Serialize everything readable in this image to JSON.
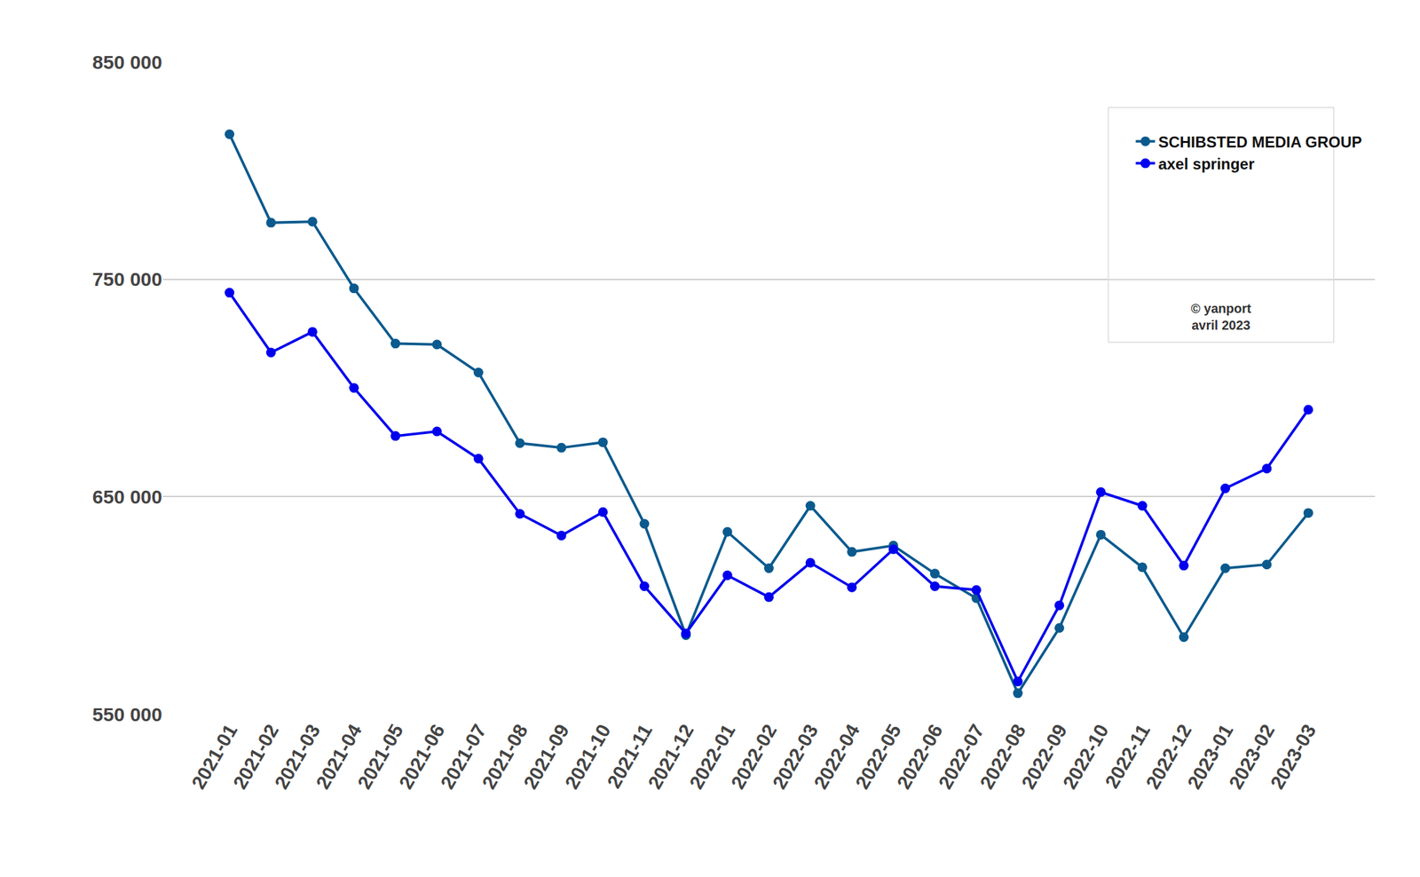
{
  "chart_data": {
    "type": "line",
    "categories": [
      "2021-01",
      "2021-02",
      "2021-03",
      "2021-04",
      "2021-05",
      "2021-06",
      "2021-07",
      "2021-08",
      "2021-09",
      "2021-10",
      "2021-11",
      "2021-12",
      "2022-01",
      "2022-02",
      "2022-03",
      "2022-04",
      "2022-05",
      "2022-06",
      "2022-07",
      "2022-08",
      "2022-09",
      "2022-10",
      "2022-11",
      "2022-12",
      "2023-01",
      "2023-02",
      "2023-03"
    ],
    "series": [
      {
        "name": "SCHIBSTED MEDIA GROUP",
        "color": "#0b5a8e",
        "marker": "circle",
        "values": [
          816700,
          776000,
          776500,
          745800,
          720400,
          720000,
          707100,
          674600,
          672500,
          675000,
          637500,
          586300,
          633800,
          617100,
          645800,
          624600,
          627500,
          614600,
          603300,
          559600,
          589600,
          632500,
          617500,
          585400,
          617100,
          618800,
          642500
        ]
      },
      {
        "name": "axel springer",
        "color": "#0000ee",
        "marker": "circle",
        "values": [
          743800,
          716300,
          725800,
          700000,
          677900,
          680000,
          667500,
          642100,
          632100,
          642900,
          608800,
          587100,
          613800,
          603800,
          619600,
          608300,
          625800,
          608800,
          607100,
          565000,
          600000,
          652100,
          645800,
          618300,
          653800,
          662900,
          690000
        ]
      }
    ],
    "ylim": [
      550000,
      850000
    ],
    "yticks": [
      {
        "value": 550000,
        "label": "550 000"
      },
      {
        "value": 650000,
        "label": "650 000"
      },
      {
        "value": 750000,
        "label": "750 000"
      },
      {
        "value": 850000,
        "label": "850 000"
      }
    ],
    "grid": true,
    "legend": "top right",
    "annotations": [
      "© yanport",
      "avril 2023"
    ]
  }
}
